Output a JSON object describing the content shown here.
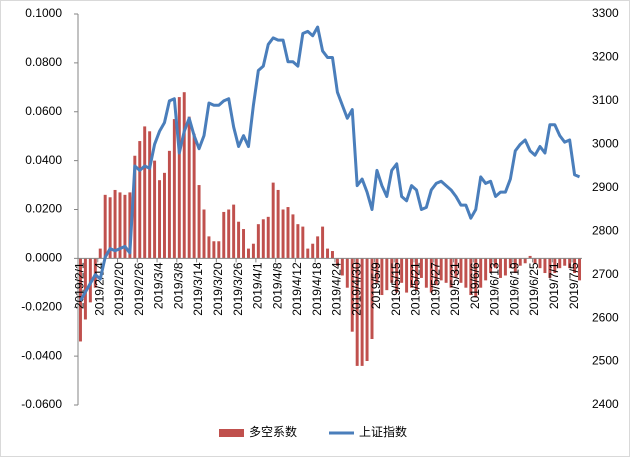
{
  "chart_data": {
    "type": "bar_line",
    "categories": [
      "2019/2/1",
      null,
      null,
      null,
      "2019/2/14",
      null,
      null,
      null,
      "2019/2/20",
      null,
      null,
      null,
      "2019/2/26",
      null,
      null,
      null,
      "2019/3/4",
      null,
      null,
      null,
      "2019/3/8",
      null,
      null,
      null,
      "2019/3/14",
      null,
      null,
      null,
      "2019/3/20",
      null,
      null,
      null,
      "2019/3/26",
      null,
      null,
      null,
      "2019/4/1",
      null,
      null,
      null,
      "2019/4/8",
      null,
      null,
      null,
      "2019/4/12",
      null,
      null,
      null,
      "2019/4/18",
      null,
      null,
      null,
      "2019/4/24",
      null,
      null,
      null,
      "2019/4/30",
      null,
      null,
      null,
      "2019/5/9",
      null,
      null,
      null,
      "2019/5/15",
      null,
      null,
      null,
      "2019/5/21",
      null,
      null,
      null,
      "2019/5/27",
      null,
      null,
      null,
      "2019/5/31",
      null,
      null,
      null,
      "2019/6/6",
      null,
      null,
      null,
      "2019/6/13",
      null,
      null,
      null,
      "2019/6/19",
      null,
      null,
      null,
      "2019/6/25",
      null,
      null,
      null,
      "2019/7/1",
      null,
      null,
      null,
      "2019/7/5",
      null
    ],
    "series": [
      {
        "name": "多空系数",
        "type": "bar",
        "color": "#c0504d",
        "values": [
          -0.034,
          -0.025,
          -0.018,
          -0.012,
          0.004,
          0.026,
          0.025,
          0.028,
          0.027,
          0.026,
          0.027,
          0.042,
          0.048,
          0.054,
          0.052,
          0.04,
          0.032,
          0.035,
          0.044,
          0.057,
          0.066,
          0.068,
          0.058,
          0.051,
          0.03,
          0.02,
          0.009,
          0.007,
          0.007,
          0.019,
          0.02,
          0.022,
          0.015,
          0.012,
          0.004,
          0.006,
          0.014,
          0.016,
          0.017,
          0.031,
          0.028,
          0.02,
          0.021,
          0.018,
          0.014,
          0.013,
          0.004,
          0.006,
          0.009,
          0.013,
          0.004,
          0.003,
          -0.003,
          -0.007,
          -0.012,
          -0.03,
          -0.044,
          -0.044,
          -0.042,
          -0.033,
          -0.01,
          -0.015,
          -0.013,
          -0.01,
          -0.014,
          -0.01,
          -0.014,
          -0.012,
          -0.013,
          -0.008,
          -0.012,
          -0.014,
          -0.011,
          -0.009,
          -0.01,
          -0.012,
          -0.008,
          -0.01,
          -0.012,
          -0.015,
          -0.016,
          -0.012,
          -0.009,
          -0.006,
          -0.004,
          -0.008,
          -0.007,
          -0.004,
          -0.006,
          -0.003,
          -0.002,
          0.001,
          -0.002,
          -0.004,
          -0.006,
          -0.008,
          -0.006,
          -0.004,
          -0.003,
          -0.004,
          -0.006,
          -0.009
        ]
      },
      {
        "name": "上证指数",
        "type": "line",
        "axis": "y2",
        "color": "#4a7ebb",
        "values": [
          2640,
          2660,
          2680,
          2700,
          2690,
          2740,
          2760,
          2755,
          2760,
          2765,
          2750,
          2950,
          2940,
          2950,
          2945,
          3000,
          3030,
          3050,
          3100,
          3105,
          2980,
          3030,
          3060,
          3020,
          2990,
          3020,
          3095,
          3090,
          3090,
          3100,
          3105,
          3040,
          2995,
          3020,
          2995,
          3090,
          3170,
          3180,
          3230,
          3245,
          3240,
          3240,
          3190,
          3190,
          3180,
          3255,
          3260,
          3250,
          3270,
          3215,
          3200,
          3200,
          3120,
          3090,
          3060,
          3080,
          2905,
          2920,
          2890,
          2850,
          2940,
          2905,
          2880,
          2940,
          2955,
          2880,
          2870,
          2905,
          2895,
          2850,
          2855,
          2895,
          2910,
          2915,
          2905,
          2895,
          2880,
          2860,
          2860,
          2830,
          2850,
          2925,
          2910,
          2915,
          2880,
          2890,
          2890,
          2920,
          2985,
          3000,
          3010,
          2985,
          2975,
          2995,
          2980,
          3045,
          3045,
          3020,
          3005,
          3010,
          2930,
          2925
        ]
      }
    ],
    "ylim": [
      -0.06,
      0.1
    ],
    "yticks": [
      {
        "value": -0.06,
        "label": "-0.0600"
      },
      {
        "value": -0.04,
        "label": "-0.0400"
      },
      {
        "value": -0.02,
        "label": "-0.0200"
      },
      {
        "value": 0,
        "label": "0.0000"
      },
      {
        "value": 0.02,
        "label": "0.0200"
      },
      {
        "value": 0.04,
        "label": "0.0400"
      },
      {
        "value": 0.06,
        "label": "0.0600"
      },
      {
        "value": 0.08,
        "label": "0.0800"
      },
      {
        "value": 0.1,
        "label": "0.1000"
      }
    ],
    "y2lim": [
      2400,
      3300
    ],
    "y2ticks": [
      2400,
      2500,
      2600,
      2700,
      2800,
      2900,
      3000,
      3100,
      3200,
      3300
    ],
    "legend": "bottom"
  }
}
